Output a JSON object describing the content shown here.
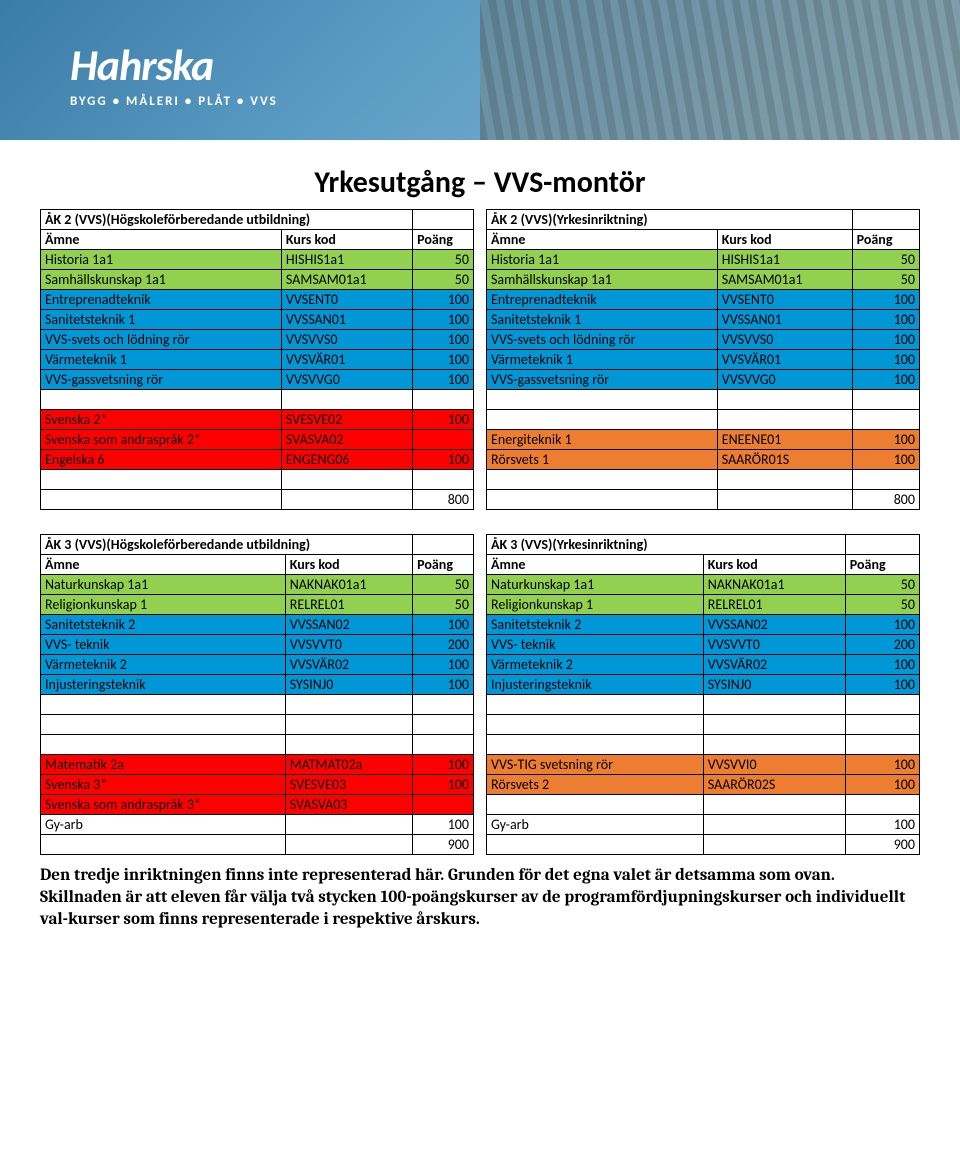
{
  "banner": {
    "title": "Hahrska",
    "sub": "BYGG • MÅLERI • PLÅT • VVS"
  },
  "page_title": "Yrkesutgång – VVS-montör",
  "colors": {
    "green": "#92d050",
    "blue": "#0097d7",
    "red": "#ff0000",
    "orange": "#ed7d31"
  },
  "headers": {
    "amne": "Ämne",
    "kurskod": "Kurs kod",
    "poang": "Poäng"
  },
  "tables": {
    "ak2_left": {
      "title": "ÅK 2 (VVS)(Högskoleförberedande utbildning)",
      "rows": [
        {
          "c": "green",
          "a": "Historia 1a1",
          "k": "HISHIS1a1",
          "p": "50"
        },
        {
          "c": "green",
          "a": "Samhällskunskap 1a1",
          "k": "SAMSAM01a1",
          "p": "50"
        },
        {
          "c": "blue",
          "a": "Entreprenadteknik",
          "k": "VVSENT0",
          "p": "100"
        },
        {
          "c": "blue",
          "a": "Sanitetsteknik 1",
          "k": "VVSSAN01",
          "p": "100"
        },
        {
          "c": "blue",
          "a": "VVS-svets och lödning rör",
          "k": "VVSVVS0",
          "p": "100"
        },
        {
          "c": "blue",
          "a": "Värmeteknik 1",
          "k": "VVSVÄR01",
          "p": "100"
        },
        {
          "c": "blue",
          "a": "VVS-gassvetsning rör",
          "k": "VVSVVG0",
          "p": "100"
        },
        {
          "c": "empty"
        },
        {
          "c": "red",
          "a": "Svenska 2*",
          "k": "SVESVE02",
          "p": "100"
        },
        {
          "c": "red",
          "a": "Svenska som andraspråk 2*",
          "k": "SVASVA02",
          "p": ""
        },
        {
          "c": "red",
          "a": "Engelska 6",
          "k": "ENGENG06",
          "p": "100"
        },
        {
          "c": "empty"
        }
      ],
      "total": "800"
    },
    "ak2_right": {
      "title": "ÅK 2 (VVS)(Yrkesinriktning)",
      "rows": [
        {
          "c": "green",
          "a": "Historia 1a1",
          "k": "HISHIS1a1",
          "p": "50"
        },
        {
          "c": "green",
          "a": "Samhällskunskap 1a1",
          "k": "SAMSAM01a1",
          "p": "50"
        },
        {
          "c": "blue",
          "a": "Entreprenadteknik",
          "k": "VVSENT0",
          "p": "100"
        },
        {
          "c": "blue",
          "a": "Sanitetsteknik 1",
          "k": "VVSSAN01",
          "p": "100"
        },
        {
          "c": "blue",
          "a": "VVS-svets och lödning rör",
          "k": "VVSVVS0",
          "p": "100"
        },
        {
          "c": "blue",
          "a": "Värmeteknik 1",
          "k": "VVSVÄR01",
          "p": "100"
        },
        {
          "c": "blue",
          "a": "VVS-gassvetsning rör",
          "k": "VVSVVG0",
          "p": "100"
        },
        {
          "c": "empty"
        },
        {
          "c": "empty"
        },
        {
          "c": "orange",
          "a": "Energiteknik 1",
          "k": "ENEENE01",
          "p": "100"
        },
        {
          "c": "orange",
          "a": "Rörsvets 1",
          "k": "SAARÖR01S",
          "p": "100"
        },
        {
          "c": "empty"
        }
      ],
      "total": "800"
    },
    "ak3_left": {
      "title": "ÅK 3 (VVS)(Högskoleförberedande utbildning)",
      "rows": [
        {
          "c": "green",
          "a": "Naturkunskap 1a1",
          "k": "NAKNAK01a1",
          "p": "50"
        },
        {
          "c": "green",
          "a": "Religionkunskap 1",
          "k": "RELREL01",
          "p": "50"
        },
        {
          "c": "blue",
          "a": "Sanitetsteknik 2",
          "k": "VVSSAN02",
          "p": "100"
        },
        {
          "c": "blue",
          "a": "VVS- teknik",
          "k": "VVSVVT0",
          "p": "200"
        },
        {
          "c": "blue",
          "a": "Värmeteknik 2",
          "k": "VVSVÄR02",
          "p": "100"
        },
        {
          "c": "blue",
          "a": "Injusteringsteknik",
          "k": "SYSINJ0",
          "p": "100"
        },
        {
          "c": "empty"
        },
        {
          "c": "empty"
        },
        {
          "c": "empty"
        },
        {
          "c": "red",
          "a": "Matematik 2a",
          "k": "MATMAT02a",
          "p": "100"
        },
        {
          "c": "red",
          "a": "Svenska 3*",
          "k": "SVESVE03",
          "p": "100"
        },
        {
          "c": "red",
          "a": "Svenska som andraspråk 3*",
          "k": "SVASVA03",
          "p": ""
        },
        {
          "c": "",
          "a": "Gy-arb",
          "k": "",
          "p": "100"
        }
      ],
      "total": "900"
    },
    "ak3_right": {
      "title": "ÅK 3 (VVS)(Yrkesinriktning)",
      "rows": [
        {
          "c": "green",
          "a": "Naturkunskap 1a1",
          "k": "NAKNAK01a1",
          "p": "50"
        },
        {
          "c": "green",
          "a": "Religionkunskap 1",
          "k": "RELREL01",
          "p": "50"
        },
        {
          "c": "blue",
          "a": "Sanitetsteknik 2",
          "k": "VVSSAN02",
          "p": "100"
        },
        {
          "c": "blue",
          "a": "VVS- teknik",
          "k": "VVSVVT0",
          "p": "200"
        },
        {
          "c": "blue",
          "a": "Värmeteknik 2",
          "k": "VVSVÄR02",
          "p": "100"
        },
        {
          "c": "blue",
          "a": "Injusteringsteknik",
          "k": "SYSINJ0",
          "p": "100"
        },
        {
          "c": "empty"
        },
        {
          "c": "empty"
        },
        {
          "c": "empty"
        },
        {
          "c": "orange",
          "a": "VVS-TIG svetsning rör",
          "k": "VVSVVI0",
          "p": "100"
        },
        {
          "c": "orange",
          "a": "Rörsvets 2",
          "k": "SAARÖR02S",
          "p": "100"
        },
        {
          "c": "empty"
        },
        {
          "c": "",
          "a": "Gy-arb",
          "k": "",
          "p": "100"
        }
      ],
      "total": "900"
    }
  },
  "footnote": "Den tredje inriktningen finns inte representerad här. Grunden för det egna valet är detsamma som ovan. Skillnaden är att eleven får välja två stycken 100-poängskurser av de programfördjupningskurser och individuellt val-kurser som finns representerade i respektive årskurs."
}
